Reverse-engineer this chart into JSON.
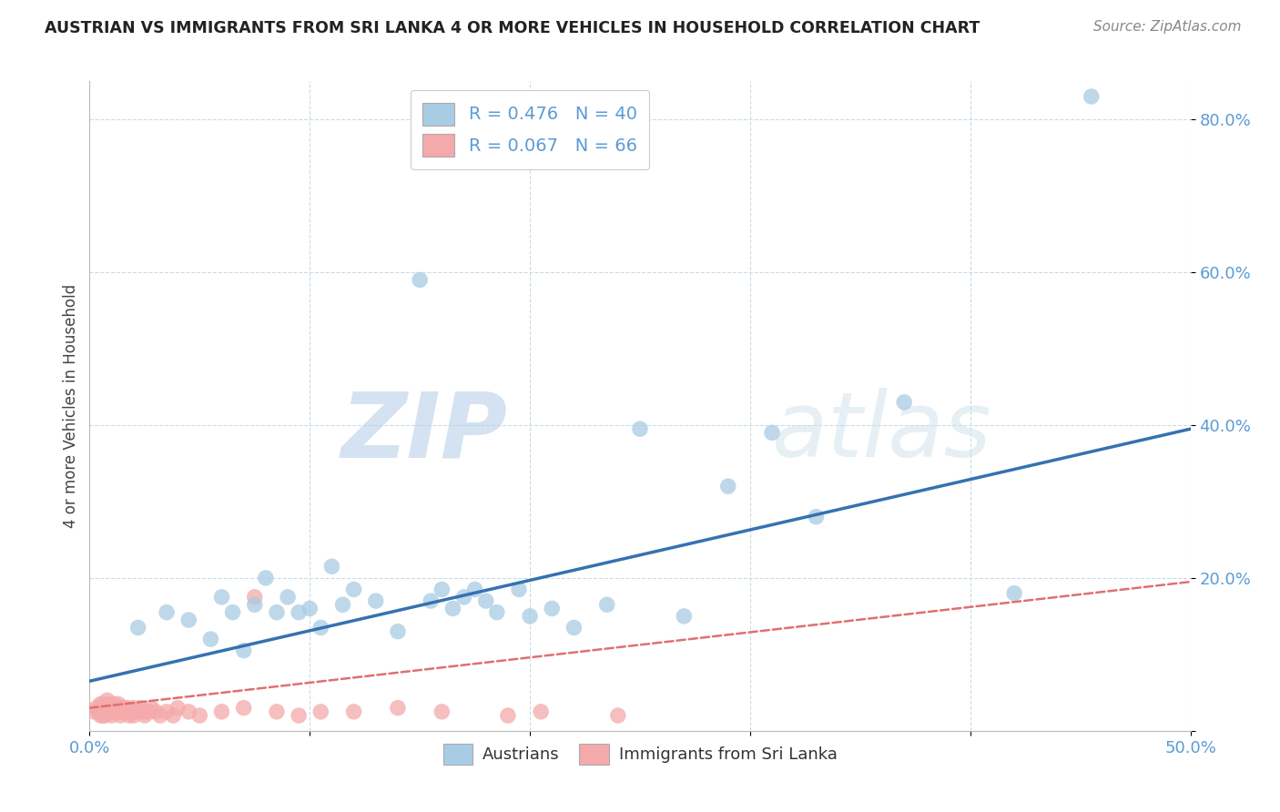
{
  "title": "AUSTRIAN VS IMMIGRANTS FROM SRI LANKA 4 OR MORE VEHICLES IN HOUSEHOLD CORRELATION CHART",
  "source": "Source: ZipAtlas.com",
  "ylabel": "4 or more Vehicles in Household",
  "xlim": [
    0.0,
    0.5
  ],
  "ylim": [
    0.0,
    0.85
  ],
  "yticks": [
    0.0,
    0.2,
    0.4,
    0.6,
    0.8
  ],
  "ytick_labels": [
    "",
    "20.0%",
    "40.0%",
    "60.0%",
    "80.0%"
  ],
  "xticks": [
    0.0,
    0.1,
    0.2,
    0.3,
    0.4,
    0.5
  ],
  "xtick_labels": [
    "0.0%",
    "",
    "",
    "",
    "",
    "50.0%"
  ],
  "blue_R": 0.476,
  "blue_N": 40,
  "pink_R": 0.067,
  "pink_N": 66,
  "blue_color": "#a8cce4",
  "pink_color": "#f4aaaa",
  "blue_line_color": "#3572b0",
  "pink_line_color": "#e07070",
  "watermark_zip": "ZIP",
  "watermark_atlas": "atlas",
  "legend_labels": [
    "Austrians",
    "Immigrants from Sri Lanka"
  ],
  "blue_scatter_x": [
    0.022,
    0.035,
    0.045,
    0.055,
    0.06,
    0.065,
    0.07,
    0.075,
    0.08,
    0.085,
    0.09,
    0.095,
    0.1,
    0.105,
    0.11,
    0.115,
    0.12,
    0.13,
    0.14,
    0.15,
    0.155,
    0.16,
    0.165,
    0.17,
    0.175,
    0.18,
    0.185,
    0.195,
    0.2,
    0.21,
    0.22,
    0.235,
    0.25,
    0.27,
    0.29,
    0.31,
    0.33,
    0.37,
    0.42,
    0.455
  ],
  "blue_scatter_y": [
    0.135,
    0.155,
    0.145,
    0.12,
    0.175,
    0.155,
    0.105,
    0.165,
    0.2,
    0.155,
    0.175,
    0.155,
    0.16,
    0.135,
    0.215,
    0.165,
    0.185,
    0.17,
    0.13,
    0.59,
    0.17,
    0.185,
    0.16,
    0.175,
    0.185,
    0.17,
    0.155,
    0.185,
    0.15,
    0.16,
    0.135,
    0.165,
    0.395,
    0.15,
    0.32,
    0.39,
    0.28,
    0.43,
    0.18,
    0.83
  ],
  "pink_scatter_x": [
    0.002,
    0.003,
    0.004,
    0.005,
    0.005,
    0.005,
    0.006,
    0.006,
    0.006,
    0.007,
    0.007,
    0.007,
    0.008,
    0.008,
    0.008,
    0.009,
    0.009,
    0.01,
    0.01,
    0.01,
    0.011,
    0.011,
    0.012,
    0.012,
    0.013,
    0.013,
    0.014,
    0.014,
    0.015,
    0.015,
    0.016,
    0.016,
    0.017,
    0.017,
    0.018,
    0.018,
    0.019,
    0.02,
    0.02,
    0.021,
    0.022,
    0.023,
    0.024,
    0.025,
    0.026,
    0.027,
    0.028,
    0.03,
    0.032,
    0.035,
    0.038,
    0.04,
    0.045,
    0.05,
    0.06,
    0.07,
    0.075,
    0.085,
    0.095,
    0.105,
    0.12,
    0.14,
    0.16,
    0.19,
    0.205,
    0.24
  ],
  "pink_scatter_y": [
    0.025,
    0.03,
    0.025,
    0.02,
    0.035,
    0.025,
    0.03,
    0.02,
    0.035,
    0.025,
    0.03,
    0.02,
    0.04,
    0.025,
    0.03,
    0.025,
    0.035,
    0.02,
    0.03,
    0.025,
    0.035,
    0.025,
    0.03,
    0.025,
    0.035,
    0.025,
    0.03,
    0.02,
    0.03,
    0.025,
    0.025,
    0.03,
    0.025,
    0.03,
    0.02,
    0.025,
    0.025,
    0.02,
    0.03,
    0.025,
    0.025,
    0.03,
    0.025,
    0.02,
    0.025,
    0.025,
    0.03,
    0.025,
    0.02,
    0.025,
    0.02,
    0.03,
    0.025,
    0.02,
    0.025,
    0.03,
    0.175,
    0.025,
    0.02,
    0.025,
    0.025,
    0.03,
    0.025,
    0.02,
    0.025,
    0.02
  ],
  "blue_line_x0": 0.0,
  "blue_line_y0": 0.065,
  "blue_line_x1": 0.5,
  "blue_line_y1": 0.395,
  "pink_line_x0": 0.0,
  "pink_line_y0": 0.03,
  "pink_line_x1": 0.5,
  "pink_line_y1": 0.195
}
